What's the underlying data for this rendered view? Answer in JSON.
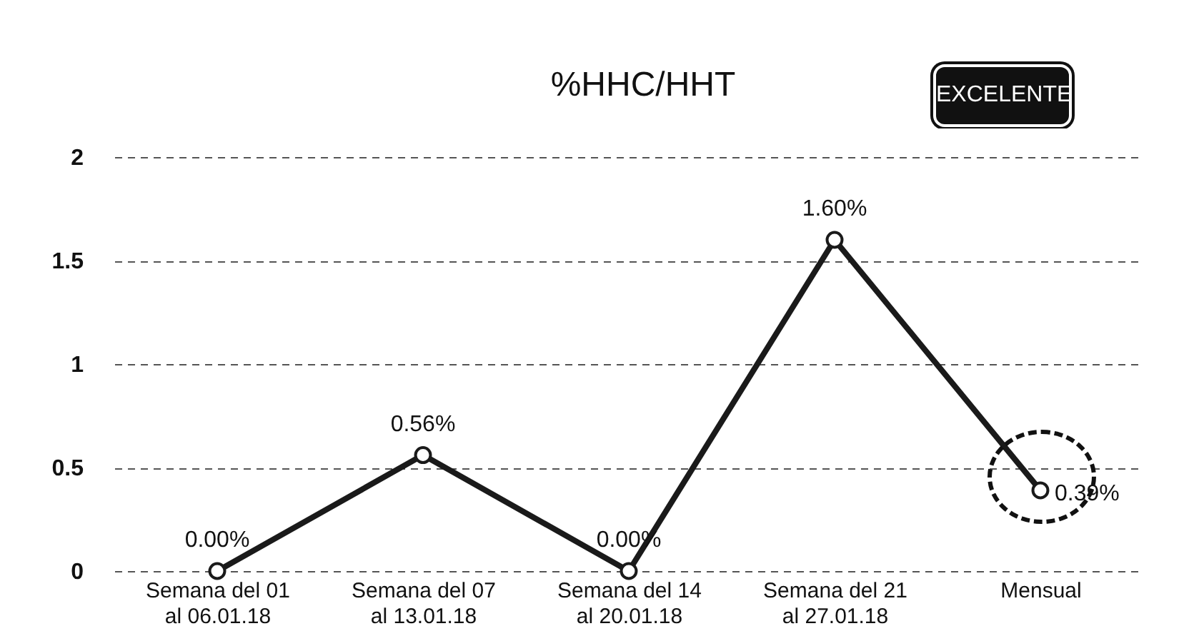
{
  "chart_data": {
    "type": "line",
    "title": "%HHC/HHT",
    "annotations": [
      "EXCELENTE"
    ],
    "categories": [
      "Semana del 01\nal 06.01.18",
      "Semana del 07\nal 13.01.18",
      "Semana del 14\nal 20.01.18",
      "Semana del 21\nal 27.01.18",
      "Mensual"
    ],
    "values": [
      0,
      0.56,
      0,
      1.6,
      0.39
    ],
    "value_labels": [
      "0.00%",
      "0.56%",
      "0.00%",
      "1.60%",
      "0.39%"
    ],
    "color": "#1a1a1a",
    "ylim": [
      0,
      2
    ],
    "yticks": [
      0,
      0.5,
      1,
      1.5,
      2
    ],
    "grid": true,
    "marker": "circle",
    "line_style": "solid"
  }
}
